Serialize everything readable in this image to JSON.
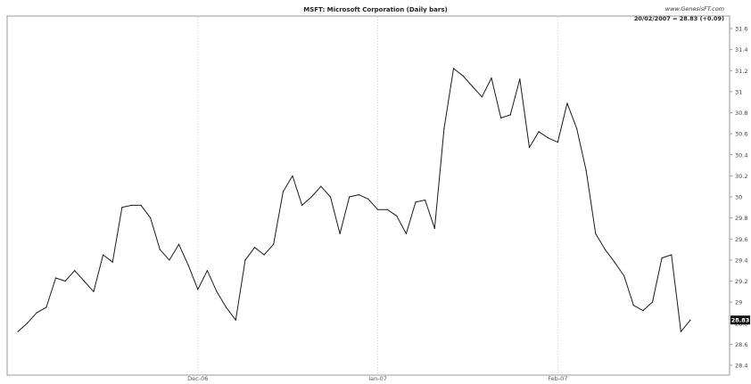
{
  "header": {
    "title": "MSFT: Microsoft Corporation (Daily bars)",
    "source": "www.GenesisFT.com",
    "last_quote": "20/02/2007 = 28.83 (+0.09)"
  },
  "chart_data": {
    "type": "line",
    "title": "MSFT: Microsoft Corporation (Daily bars)",
    "xlabel": "",
    "ylabel": "",
    "grid": true,
    "ylim": [
      28.4,
      31.6
    ],
    "y_ticks": [
      31.6,
      31.4,
      31.2,
      31,
      30.8,
      30.6,
      30.4,
      30.2,
      30,
      29.8,
      29.6,
      29.4,
      29.2,
      29,
      28.8,
      28.6,
      28.4
    ],
    "x_tick_labels": [
      {
        "label": "Dec-06",
        "index": 19
      },
      {
        "label": "Jan-07",
        "index": 38
      },
      {
        "label": "Feb-07",
        "index": 57
      }
    ],
    "current_value_label": "28.83",
    "series": [
      {
        "name": "MSFT",
        "color": "#1a1a1a",
        "values": [
          28.72,
          28.8,
          28.9,
          28.95,
          29.23,
          29.2,
          29.3,
          29.2,
          29.1,
          29.45,
          29.38,
          29.9,
          29.92,
          29.92,
          29.8,
          29.5,
          29.4,
          29.55,
          29.35,
          29.12,
          29.3,
          29.1,
          28.95,
          28.83,
          29.4,
          29.52,
          29.45,
          29.55,
          30.05,
          30.2,
          29.92,
          30.0,
          30.1,
          30.0,
          29.65,
          30.0,
          30.02,
          29.98,
          29.88,
          29.88,
          29.82,
          29.65,
          29.95,
          29.97,
          29.7,
          30.65,
          31.22,
          31.15,
          31.05,
          30.95,
          31.13,
          30.75,
          30.78,
          31.12,
          30.47,
          30.62,
          30.56,
          30.52,
          30.89,
          30.65,
          30.25,
          29.65,
          29.5,
          29.38,
          29.25,
          28.97,
          28.92,
          29.0,
          29.42,
          29.45,
          28.72,
          28.83
        ]
      }
    ]
  }
}
